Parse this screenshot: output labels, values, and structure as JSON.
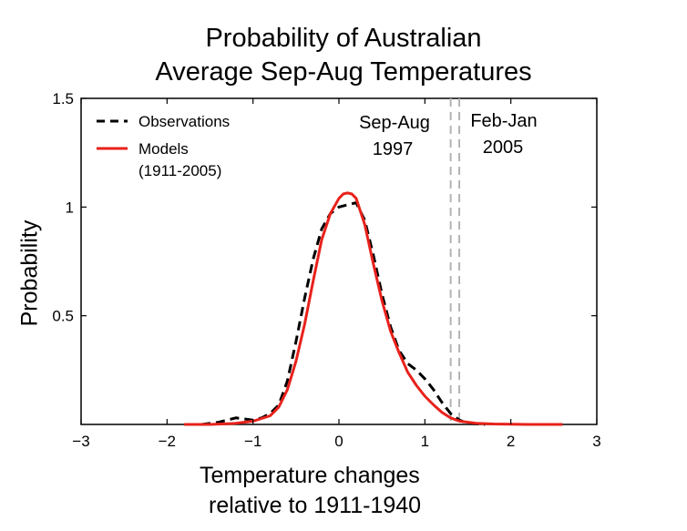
{
  "chart_data": {
    "type": "line",
    "title_line1": "Probability of Australian",
    "title_line2": "Average Sep-Aug Temperatures",
    "xlabel_line1": "Temperature changes",
    "xlabel_line2": "relative to 1911-1940",
    "ylabel": "Probability",
    "xlim": [
      -3,
      3
    ],
    "ylim": [
      0,
      1.5
    ],
    "xticks": [
      -3,
      -2,
      -1,
      0,
      1,
      2,
      3
    ],
    "yticks": [
      0.5,
      1,
      1.5
    ],
    "xtick_labels": [
      "−3",
      "−2",
      "−1",
      "0",
      "1",
      "2",
      "3"
    ],
    "ytick_labels": [
      "0.5",
      "1",
      "1.5"
    ],
    "grid": false,
    "legend_placement": "top-left",
    "series": [
      {
        "name": "Observations",
        "style": "dashed",
        "color": "#000000",
        "x": [
          -1.6,
          -1.4,
          -1.2,
          -1.1,
          -1.0,
          -0.9,
          -0.8,
          -0.7,
          -0.6,
          -0.5,
          -0.4,
          -0.3,
          -0.2,
          -0.1,
          0.0,
          0.1,
          0.2,
          0.3,
          0.4,
          0.5,
          0.6,
          0.7,
          0.8,
          0.9,
          1.0,
          1.1,
          1.2,
          1.3,
          1.4,
          1.5,
          1.7
        ],
        "y": [
          0.0,
          0.01,
          0.03,
          0.025,
          0.02,
          0.03,
          0.05,
          0.09,
          0.2,
          0.38,
          0.58,
          0.76,
          0.9,
          0.97,
          1.0,
          1.01,
          1.02,
          0.94,
          0.78,
          0.6,
          0.45,
          0.34,
          0.28,
          0.25,
          0.21,
          0.16,
          0.1,
          0.05,
          0.02,
          0.005,
          0.0
        ]
      },
      {
        "name": "Models",
        "name_note": "(1911-2005)",
        "style": "solid",
        "color": "#e8211b",
        "x": [
          -1.8,
          -1.5,
          -1.2,
          -1.0,
          -0.8,
          -0.7,
          -0.6,
          -0.5,
          -0.4,
          -0.3,
          -0.2,
          -0.1,
          0.0,
          0.05,
          0.1,
          0.15,
          0.2,
          0.3,
          0.4,
          0.5,
          0.6,
          0.7,
          0.8,
          0.9,
          1.0,
          1.1,
          1.2,
          1.3,
          1.4,
          1.6,
          1.8,
          2.2,
          2.6
        ],
        "y": [
          0.0,
          0.0,
          0.005,
          0.015,
          0.04,
          0.08,
          0.16,
          0.29,
          0.46,
          0.66,
          0.85,
          0.97,
          1.04,
          1.06,
          1.065,
          1.06,
          1.04,
          0.92,
          0.74,
          0.57,
          0.43,
          0.33,
          0.24,
          0.18,
          0.13,
          0.09,
          0.055,
          0.03,
          0.015,
          0.005,
          0.002,
          0.0,
          0.0
        ]
      }
    ],
    "vlines": [
      {
        "x": 1.3,
        "label_line1": "Sep-Aug",
        "label_line2": "1997",
        "color": "#b3b3b3",
        "style": "dashed"
      },
      {
        "x": 1.4,
        "label_line1": "Feb-Jan",
        "label_line2": "2005",
        "color": "#b3b3b3",
        "style": "dashed"
      }
    ]
  }
}
